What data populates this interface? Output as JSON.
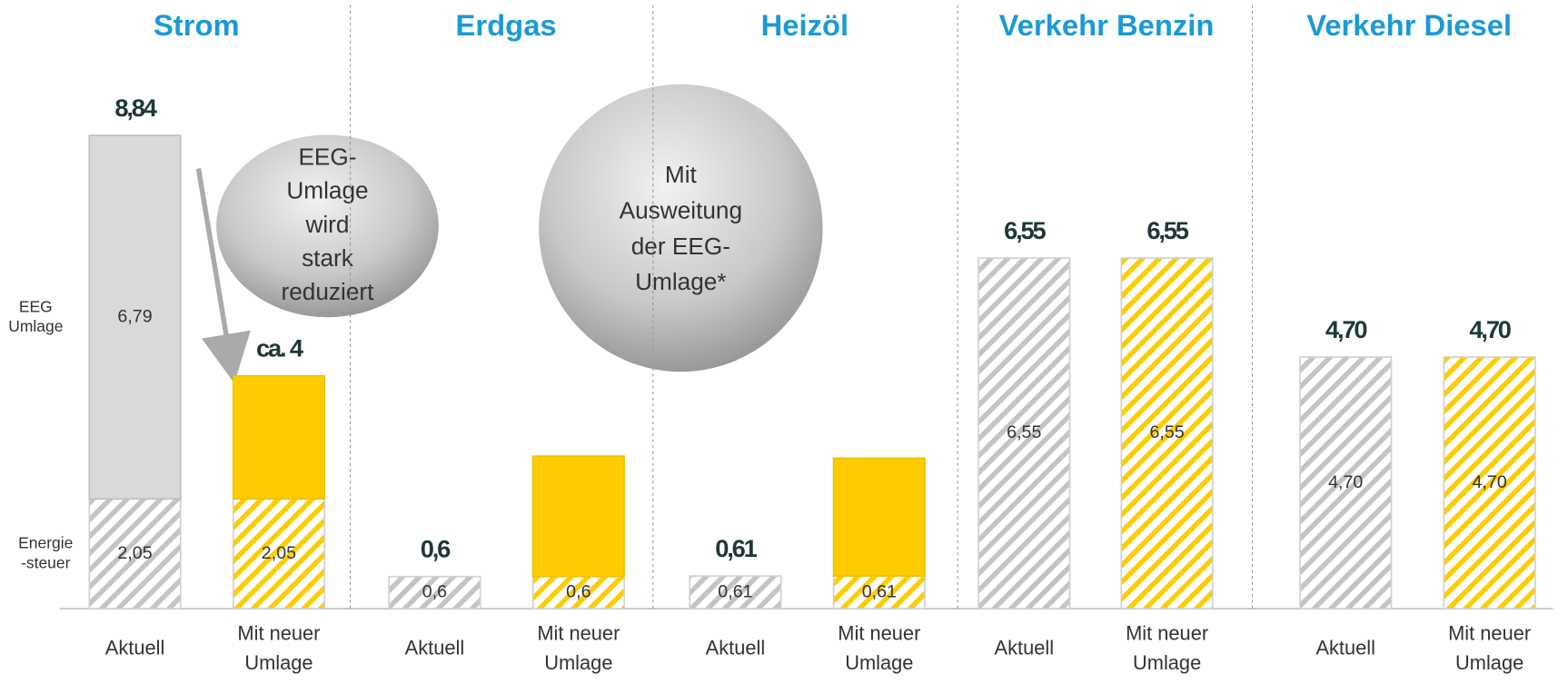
{
  "chart_data": {
    "type": "bar",
    "stacked": true,
    "groups": [
      "Strom",
      "Erdgas",
      "Heizöl",
      "Verkehr Benzin",
      "Verkehr Diesel"
    ],
    "categories": [
      "Aktuell",
      "Mit neuer\nUmlage",
      "Aktuell",
      "Mit neuer\nUmlage",
      "Aktuell",
      "Mit neuer\nUmlage",
      "Aktuell",
      "Mit neuer\nUmlage",
      "Aktuell",
      "Mit neuer\nUmlage"
    ],
    "ylim": [
      0,
      10
    ],
    "series": [
      {
        "name": "Energie\n-steuer",
        "pattern": "hatch",
        "colors": [
          "#c4c4c4",
          "#ffcc00",
          "#c4c4c4",
          "#ffcc00",
          "#c4c4c4",
          "#ffcc00",
          "#c4c4c4",
          "#ffcc00",
          "#c4c4c4",
          "#ffcc00"
        ],
        "values": [
          2.05,
          2.05,
          0.6,
          0.6,
          0.61,
          0.61,
          6.55,
          6.55,
          4.7,
          4.7
        ],
        "value_labels": [
          "2,05",
          "2,05",
          "0,6",
          "0,6",
          "0,61",
          "0,61",
          "6,55",
          "6,55",
          "4,70",
          "4,70"
        ]
      },
      {
        "name": "EEG\nUmlage",
        "pattern": "solid",
        "colors": [
          "#d9d9d9",
          "#ffcc00",
          "#d9d9d9",
          "#ffcc00",
          "#d9d9d9",
          "#ffcc00",
          "#d9d9d9",
          "#ffcc00",
          "#d9d9d9",
          "#ffcc00"
        ],
        "values": [
          6.79,
          2.3,
          null,
          2.25,
          null,
          2.2,
          null,
          null,
          null,
          null
        ],
        "value_labels": [
          "6,79",
          null,
          null,
          null,
          null,
          null,
          null,
          null,
          null,
          null
        ]
      }
    ],
    "total_labels": [
      "8,84",
      "ca. 4",
      "0,6",
      null,
      "0,61",
      null,
      "6,55",
      "6,55",
      "4,70",
      "4,70"
    ],
    "annotations": [
      "EEG-\nUmlage\nwird\nstark\nreduziert",
      "Mit\nAusweitung\nder EEG-\nUmlage*"
    ]
  }
}
